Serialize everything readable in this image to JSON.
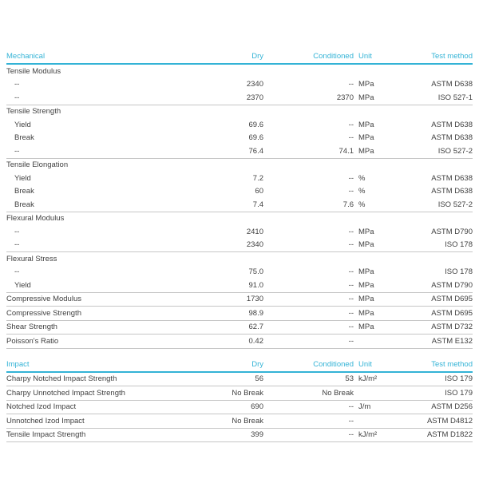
{
  "colors": {
    "accent_cyan": "#33b3d6",
    "body_text": "#414141",
    "separator_gray": "#c6c6c6",
    "background": "#ffffff"
  },
  "tables": [
    {
      "header": {
        "label": "Mechanical",
        "dry": "Dry",
        "conditioned": "Conditioned",
        "unit": "Unit",
        "test_method": "Test method"
      },
      "groups": [
        {
          "name": "Tensile Modulus",
          "rows": [
            {
              "property": "--",
              "dry": "2340",
              "conditioned": "--",
              "unit": "MPa",
              "test_method": "ASTM D638"
            },
            {
              "property": "--",
              "dry": "2370",
              "conditioned": "2370",
              "unit": "MPa",
              "test_method": "ISO 527-1"
            }
          ]
        },
        {
          "name": "Tensile Strength",
          "rows": [
            {
              "property": "Yield",
              "dry": "69.6",
              "conditioned": "--",
              "unit": "MPa",
              "test_method": "ASTM D638"
            },
            {
              "property": "Break",
              "dry": "69.6",
              "conditioned": "--",
              "unit": "MPa",
              "test_method": "ASTM D638"
            },
            {
              "property": "--",
              "dry": "76.4",
              "conditioned": "74.1",
              "unit": "MPa",
              "test_method": "ISO 527-2"
            }
          ]
        },
        {
          "name": "Tensile Elongation",
          "rows": [
            {
              "property": "Yield",
              "dry": "7.2",
              "conditioned": "--",
              "unit": "%",
              "test_method": "ASTM D638"
            },
            {
              "property": "Break",
              "dry": "60",
              "conditioned": "--",
              "unit": "%",
              "test_method": "ASTM D638"
            },
            {
              "property": "Break",
              "dry": "7.4",
              "conditioned": "7.6",
              "unit": "%",
              "test_method": "ISO 527-2"
            }
          ]
        },
        {
          "name": "Flexural Modulus",
          "rows": [
            {
              "property": "--",
              "dry": "2410",
              "conditioned": "--",
              "unit": "MPa",
              "test_method": "ASTM D790"
            },
            {
              "property": "--",
              "dry": "2340",
              "conditioned": "--",
              "unit": "MPa",
              "test_method": "ISO 178"
            }
          ]
        },
        {
          "name": "Flexural Stress",
          "rows": [
            {
              "property": "--",
              "dry": "75.0",
              "conditioned": "--",
              "unit": "MPa",
              "test_method": "ISO 178"
            },
            {
              "property": "Yield",
              "dry": "91.0",
              "conditioned": "--",
              "unit": "MPa",
              "test_method": "ASTM D790"
            }
          ]
        },
        {
          "name": "Compressive Modulus",
          "values": {
            "dry": "1730",
            "conditioned": "--",
            "unit": "MPa",
            "test_method": "ASTM D695"
          }
        },
        {
          "name": "Compressive Strength",
          "values": {
            "dry": "98.9",
            "conditioned": "--",
            "unit": "MPa",
            "test_method": "ASTM D695"
          }
        },
        {
          "name": "Shear Strength",
          "values": {
            "dry": "62.7",
            "conditioned": "--",
            "unit": "MPa",
            "test_method": "ASTM D732"
          }
        },
        {
          "name": "Poisson's Ratio",
          "values": {
            "dry": "0.42",
            "conditioned": "--",
            "unit": "",
            "test_method": "ASTM E132"
          }
        }
      ]
    },
    {
      "header": {
        "label": "Impact",
        "dry": "Dry",
        "conditioned": "Conditioned",
        "unit": "Unit",
        "test_method": "Test method"
      },
      "groups": [
        {
          "name": "Charpy Notched Impact Strength",
          "values": {
            "dry": "56",
            "conditioned": "53",
            "unit": "kJ/m²",
            "test_method": "ISO 179"
          }
        },
        {
          "name": "Charpy Unnotched Impact Strength",
          "values": {
            "dry": "No Break",
            "conditioned": "No Break",
            "unit": "",
            "test_method": "ISO 179"
          }
        },
        {
          "name": "Notched Izod Impact",
          "values": {
            "dry": "690",
            "conditioned": "--",
            "unit": "J/m",
            "test_method": "ASTM D256"
          }
        },
        {
          "name": "Unnotched Izod Impact",
          "values": {
            "dry": "No Break",
            "conditioned": "--",
            "unit": "",
            "test_method": "ASTM D4812"
          }
        },
        {
          "name": "Tensile Impact Strength",
          "values": {
            "dry": "399",
            "conditioned": "--",
            "unit": "kJ/m²",
            "test_method": "ASTM D1822"
          }
        }
      ]
    }
  ]
}
